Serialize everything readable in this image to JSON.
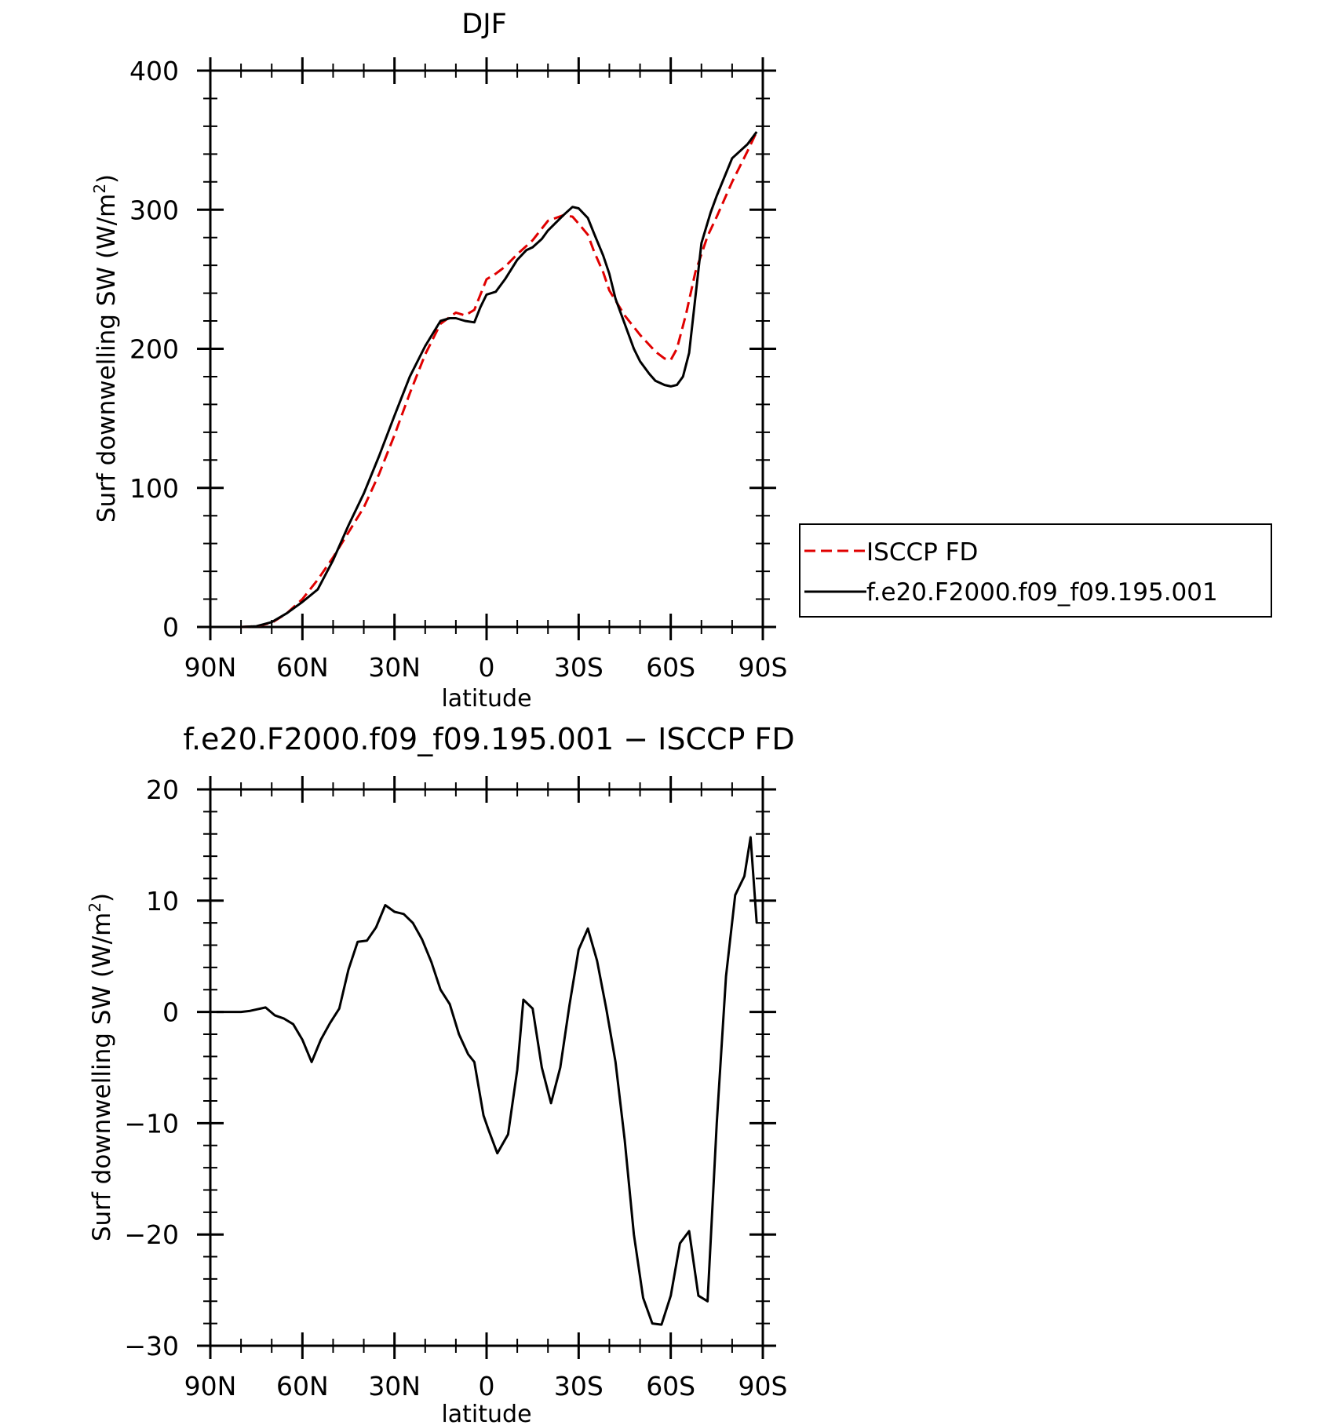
{
  "colors": {
    "model": "#000000",
    "obs": "#e00000",
    "axis": "#000000",
    "background": "#ffffff"
  },
  "chart_data": [
    {
      "type": "line",
      "title": "DJF",
      "xlabel": "latitude",
      "ylabel": "Surf downwelling SW (W/m²)",
      "ylabel_main": "Surf downwelling SW (W/m",
      "ylabel_sup": "2",
      "ylabel_close": ")",
      "xlim": [
        -90,
        90
      ],
      "ylim": [
        0,
        400
      ],
      "xticks": [
        -90,
        -60,
        -30,
        0,
        30,
        60,
        90
      ],
      "xtick_labels": [
        "90N",
        "60N",
        "30N",
        "0",
        "30S",
        "60S",
        "90S"
      ],
      "yticks": [
        0,
        100,
        200,
        300,
        400
      ],
      "ytick_labels": [
        "0",
        "100",
        "200",
        "300",
        "400"
      ],
      "legend": {
        "position": "right",
        "entries": [
          "ISCCP FD",
          "f.e20.F2000.f09_f09.195.001"
        ]
      },
      "series": [
        {
          "name": "ISCCP FD",
          "style": "dashed",
          "color": "#e00000",
          "x": [
            -80,
            -75,
            -70,
            -65,
            -60,
            -55,
            -50,
            -45,
            -40,
            -35,
            -30,
            -25,
            -20,
            -15,
            -10,
            -7,
            -4,
            0,
            3,
            6,
            10,
            15,
            20,
            25,
            28,
            30,
            33,
            35,
            38,
            40,
            45,
            50,
            55,
            58,
            60,
            62,
            65,
            68,
            70,
            72,
            75,
            80,
            85,
            88
          ],
          "y": [
            0,
            0.5,
            3,
            10,
            20,
            34,
            50,
            68,
            86,
            110,
            138,
            168,
            196,
            218,
            226,
            224,
            228,
            250,
            254,
            259,
            268,
            278,
            292,
            296,
            295,
            290,
            282,
            270,
            255,
            242,
            224,
            210,
            198,
            193,
            192,
            200,
            225,
            255,
            268,
            281,
            295,
            320,
            342,
            356
          ]
        },
        {
          "name": "f.e20.F2000.f09_f09.195.001",
          "style": "solid",
          "color": "#000000",
          "x": [
            -80,
            -75,
            -70,
            -65,
            -60,
            -55,
            -50,
            -45,
            -40,
            -35,
            -30,
            -25,
            -20,
            -15,
            -12,
            -10,
            -7,
            -4,
            -2,
            0,
            3,
            6,
            10,
            13,
            15,
            18,
            20,
            25,
            28,
            30,
            33,
            35,
            38,
            40,
            42,
            45,
            48,
            50,
            53,
            55,
            58,
            60,
            62,
            64,
            66,
            70,
            73,
            75,
            80,
            85,
            88
          ],
          "y": [
            0,
            0.5,
            3.5,
            10,
            18,
            27,
            48,
            73,
            96,
            123,
            152,
            180,
            202,
            220,
            222,
            222,
            220,
            219,
            230,
            239,
            241,
            250,
            264,
            271,
            273,
            279,
            285,
            296,
            302,
            301,
            294,
            283,
            267,
            254,
            236,
            218,
            200,
            191,
            182,
            177,
            174,
            173,
            174,
            180,
            197,
            276,
            298,
            310,
            337,
            347,
            356
          ]
        }
      ]
    },
    {
      "type": "line",
      "title": "f.e20.F2000.f09_f09.195.001 − ISCCP FD",
      "xlabel": "latitude",
      "ylabel": "Surf downwelling SW (W/m²)",
      "ylabel_main": "Surf downwelling SW (W/m",
      "ylabel_sup": "2",
      "ylabel_close": ")",
      "xlim": [
        -90,
        90
      ],
      "ylim": [
        -30,
        20
      ],
      "xticks": [
        -90,
        -60,
        -30,
        0,
        30,
        60,
        90
      ],
      "xtick_labels": [
        "90N",
        "60N",
        "30N",
        "0",
        "30S",
        "60S",
        "90S"
      ],
      "yticks": [
        -30,
        -20,
        -10,
        0,
        10,
        20
      ],
      "ytick_labels": [
        "−30",
        "−20",
        "−10",
        "0",
        "10",
        "20"
      ],
      "series": [
        {
          "style": "solid",
          "color": "#000000",
          "x": [
            -88,
            -80,
            -77,
            -72,
            -69,
            -66,
            -63,
            -60,
            -57,
            -54,
            -51,
            -48,
            -45,
            -42,
            -39,
            -36,
            -33,
            -30,
            -27,
            -24,
            -21,
            -18,
            -15,
            -12,
            -9,
            -6,
            -4,
            -1,
            0.5,
            3.5,
            7,
            10,
            12,
            15,
            18,
            21,
            24,
            27,
            30,
            33,
            36,
            39,
            42,
            45,
            48,
            51,
            54,
            57,
            60,
            63,
            66,
            69,
            72,
            75,
            78,
            81,
            84,
            86,
            88
          ],
          "y": [
            0,
            0,
            0.1,
            0.4,
            -0.3,
            -0.6,
            -1.1,
            -2.5,
            -4.5,
            -2.5,
            -1,
            0.3,
            3.8,
            6.3,
            6.4,
            7.6,
            9.6,
            9,
            8.8,
            8,
            6.5,
            4.5,
            2,
            0.7,
            -2,
            -3.8,
            -4.5,
            -9.3,
            -10.5,
            -12.7,
            -11,
            -5.2,
            1.1,
            0.3,
            -5,
            -8.2,
            -5,
            0.6,
            5.6,
            7.5,
            4.6,
            0.3,
            -4.5,
            -11.5,
            -20,
            -25.7,
            -28,
            -28.1,
            -25.5,
            -20.8,
            -19.7,
            -25.5,
            -26,
            -10,
            3.2,
            10.5,
            12.2,
            15.7,
            8
          ]
        }
      ]
    }
  ]
}
